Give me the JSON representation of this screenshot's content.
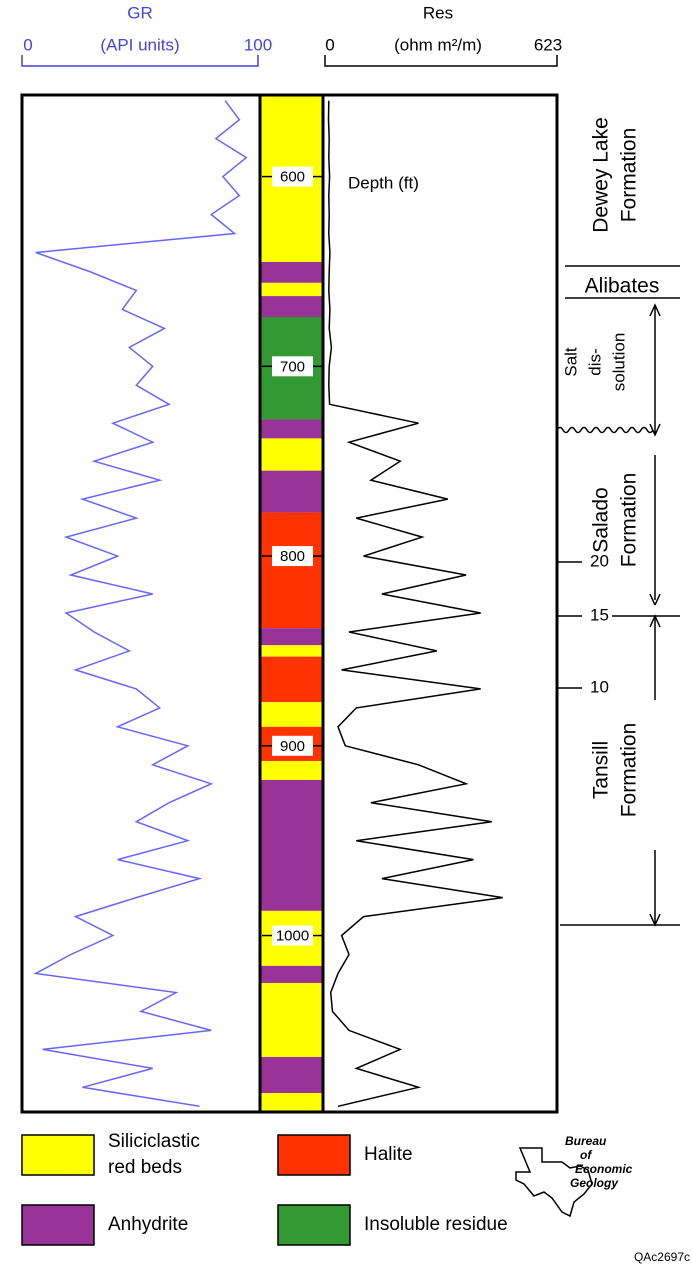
{
  "gr_track": {
    "title": "GR",
    "unit": "(API units)",
    "min_label": "0",
    "max_label": "100",
    "range": [
      0,
      100
    ]
  },
  "res_track": {
    "title": "Res",
    "unit": "(ohm m²/m)",
    "min_label": "0",
    "max_label": "623",
    "range": [
      0,
      623
    ]
  },
  "depth": {
    "label": "Depth (ft)",
    "range": [
      557,
      1093
    ],
    "ticks": [
      600,
      700,
      800,
      900,
      1000
    ]
  },
  "lithology": [
    {
      "top": 557,
      "base": 645,
      "color": "#ffff00"
    },
    {
      "top": 645,
      "base": 656,
      "color": "#993399"
    },
    {
      "top": 656,
      "base": 663,
      "color": "#ffff00"
    },
    {
      "top": 663,
      "base": 674,
      "color": "#993399"
    },
    {
      "top": 674,
      "base": 728,
      "color": "#339933"
    },
    {
      "top": 728,
      "base": 738,
      "color": "#993399"
    },
    {
      "top": 738,
      "base": 755,
      "color": "#ffff00"
    },
    {
      "top": 755,
      "base": 777,
      "color": "#993399"
    },
    {
      "top": 777,
      "base": 838,
      "color": "#ff3300"
    },
    {
      "top": 838,
      "base": 847,
      "color": "#993399"
    },
    {
      "top": 847,
      "base": 853,
      "color": "#ffff00"
    },
    {
      "top": 853,
      "base": 877,
      "color": "#ff3300"
    },
    {
      "top": 877,
      "base": 890,
      "color": "#ffff00"
    },
    {
      "top": 890,
      "base": 908,
      "color": "#ff3300"
    },
    {
      "top": 908,
      "base": 918,
      "color": "#ffff00"
    },
    {
      "top": 918,
      "base": 987,
      "color": "#993399"
    },
    {
      "top": 987,
      "base": 1016,
      "color": "#ffff00"
    },
    {
      "top": 1016,
      "base": 1025,
      "color": "#993399"
    },
    {
      "top": 1025,
      "base": 1064,
      "color": "#ffff00"
    },
    {
      "top": 1064,
      "base": 1083,
      "color": "#993399"
    },
    {
      "top": 1083,
      "base": 1093,
      "color": "#ffff00"
    }
  ],
  "logs": {
    "depth": [
      560,
      570,
      580,
      590,
      600,
      610,
      620,
      630,
      640,
      650,
      660,
      670,
      680,
      690,
      700,
      710,
      720,
      730,
      740,
      750,
      760,
      770,
      780,
      790,
      800,
      810,
      820,
      830,
      840,
      850,
      860,
      870,
      880,
      890,
      900,
      910,
      920,
      930,
      940,
      950,
      960,
      970,
      980,
      990,
      1000,
      1010,
      1020,
      1030,
      1040,
      1050,
      1060,
      1070,
      1080,
      1090
    ],
    "gr": [
      86,
      92,
      82,
      95,
      85,
      92,
      80,
      90,
      5,
      28,
      48,
      42,
      60,
      45,
      55,
      48,
      62,
      38,
      55,
      30,
      58,
      25,
      48,
      18,
      40,
      20,
      55,
      18,
      30,
      45,
      22,
      48,
      58,
      40,
      70,
      55,
      80,
      62,
      48,
      70,
      40,
      75,
      48,
      22,
      38,
      20,
      5,
      65,
      50,
      80,
      8,
      55,
      25,
      75
    ],
    "gr_color": "#6666ff",
    "res": [
      5,
      4,
      6,
      5,
      7,
      5,
      6,
      5,
      8,
      6,
      5,
      8,
      6,
      12,
      6,
      5,
      7,
      250,
      60,
      200,
      120,
      330,
      80,
      260,
      100,
      380,
      150,
      420,
      60,
      300,
      40,
      420,
      80,
      30,
      50,
      250,
      380,
      120,
      450,
      80,
      400,
      150,
      480,
      100,
      40,
      60,
      30,
      10,
      15,
      60,
      200,
      80,
      250,
      30
    ],
    "res_color": "#000000"
  },
  "formations": {
    "dewey": [
      "Dewey Lake",
      "Formation"
    ],
    "alibates": "Alibates",
    "salt": [
      "Salt",
      "dis-",
      "solution"
    ],
    "salado": [
      "Salado",
      "Formation"
    ],
    "tansill": [
      "Tansill",
      "Formation"
    ],
    "markers": [
      "20",
      "15",
      "10"
    ]
  },
  "legend": [
    {
      "label": [
        "Siliciclastic",
        "red beds"
      ],
      "color": "#ffff00"
    },
    {
      "label": [
        "Halite"
      ],
      "color": "#ff3300"
    },
    {
      "label": [
        "Anhydrite"
      ],
      "color": "#993399"
    },
    {
      "label": [
        "Insoluble residue"
      ],
      "color": "#339933"
    }
  ],
  "logo": [
    "Bureau",
    "of",
    "Economic",
    "Geology"
  ],
  "figure_id": "QAc2697c"
}
